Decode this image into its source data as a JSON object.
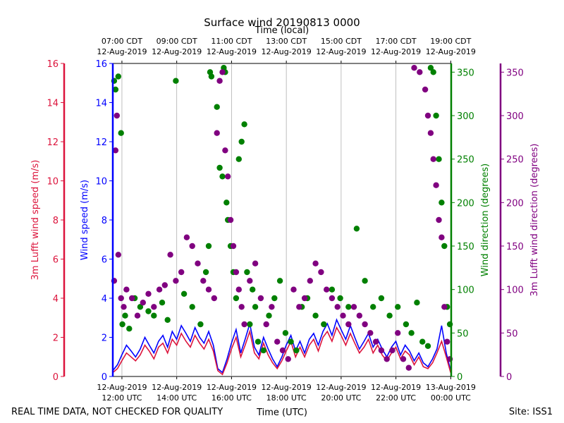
{
  "chart_data": {
    "type": "scatter",
    "title": "Surface wind 20190813 0000",
    "top_axis_label": "Time (local)",
    "xlabel": "Time (UTC)",
    "x_units": "hours UTC since 12-Aug-2019 11:40",
    "xlim": [
      0,
      12.35
    ],
    "footer_left": "REAL TIME DATA, NOT CHECKED FOR QUALITY",
    "footer_right": "Site: ISS1",
    "bottom_ticks": [
      {
        "x": 0.333,
        "line1": "12-Aug-2019",
        "line2": "12:00 UTC"
      },
      {
        "x": 2.333,
        "line1": "12-Aug-2019",
        "line2": "14:00 UTC"
      },
      {
        "x": 4.333,
        "line1": "12-Aug-2019",
        "line2": "16:00 UTC"
      },
      {
        "x": 6.333,
        "line1": "12-Aug-2019",
        "line2": "18:00 UTC"
      },
      {
        "x": 8.333,
        "line1": "12-Aug-2019",
        "line2": "20:00 UTC"
      },
      {
        "x": 10.333,
        "line1": "12-Aug-2019",
        "line2": "22:00 UTC"
      },
      {
        "x": 12.333,
        "line1": "13-Aug-2019",
        "line2": "00:00 UTC"
      }
    ],
    "top_ticks": [
      {
        "x": 0.333,
        "line1": "07:00 CDT",
        "line2": "12-Aug-2019"
      },
      {
        "x": 2.333,
        "line1": "09:00 CDT",
        "line2": "12-Aug-2019"
      },
      {
        "x": 4.333,
        "line1": "11:00 CDT",
        "line2": "12-Aug-2019"
      },
      {
        "x": 6.333,
        "line1": "13:00 CDT",
        "line2": "12-Aug-2019"
      },
      {
        "x": 8.333,
        "line1": "15:00 CDT",
        "line2": "12-Aug-2019"
      },
      {
        "x": 10.333,
        "line1": "17:00 CDT",
        "line2": "12-Aug-2019"
      },
      {
        "x": 12.333,
        "line1": "19:00 CDT",
        "line2": "12-Aug-2019"
      }
    ],
    "axes": {
      "lufft_speed": {
        "label": "3m Lufft wind speed (m/s)",
        "ylim": [
          0,
          16
        ],
        "ticks": [
          0,
          2,
          4,
          6,
          8,
          10,
          12,
          14,
          16
        ],
        "color": "#dc143c"
      },
      "speed": {
        "label": "Wind speed (m/s)",
        "ylim": [
          0,
          16
        ],
        "ticks": [
          0,
          2,
          4,
          6,
          8,
          10,
          12,
          14,
          16
        ],
        "color": "#0000ff"
      },
      "direction": {
        "label": "Wind direction (degrees)",
        "ylim": [
          0,
          360
        ],
        "ticks": [
          0,
          50,
          100,
          150,
          200,
          250,
          300,
          350
        ],
        "color": "#008000"
      },
      "lufft_direction": {
        "label": "3m Lufft wind direction (degrees)",
        "ylim": [
          0,
          360
        ],
        "ticks": [
          0,
          50,
          100,
          150,
          200,
          250,
          300,
          350
        ],
        "color": "#800080"
      }
    },
    "series": [
      {
        "name": "Wind speed",
        "axis": "speed",
        "kind": "line",
        "color": "#0000ff",
        "x": [
          0.0,
          0.17,
          0.33,
          0.5,
          0.67,
          0.83,
          1.0,
          1.17,
          1.33,
          1.5,
          1.67,
          1.83,
          2.0,
          2.17,
          2.33,
          2.5,
          2.67,
          2.83,
          3.0,
          3.17,
          3.33,
          3.5,
          3.67,
          3.83,
          4.0,
          4.17,
          4.33,
          4.5,
          4.67,
          4.83,
          5.0,
          5.17,
          5.33,
          5.5,
          5.67,
          5.83,
          6.0,
          6.17,
          6.33,
          6.5,
          6.67,
          6.83,
          7.0,
          7.17,
          7.33,
          7.5,
          7.67,
          7.83,
          8.0,
          8.17,
          8.33,
          8.5,
          8.67,
          8.83,
          9.0,
          9.17,
          9.33,
          9.5,
          9.67,
          9.83,
          10.0,
          10.17,
          10.33,
          10.5,
          10.67,
          10.83,
          11.0,
          11.17,
          11.33,
          11.5,
          11.67,
          11.83,
          12.0,
          12.17,
          12.33
        ],
        "values": [
          0.3,
          0.6,
          1.1,
          1.6,
          1.3,
          1.0,
          1.4,
          2.0,
          1.6,
          1.2,
          1.8,
          2.1,
          1.5,
          2.3,
          1.9,
          2.6,
          2.2,
          1.8,
          2.5,
          2.0,
          1.7,
          2.3,
          1.6,
          0.4,
          0.2,
          0.9,
          1.7,
          2.4,
          1.2,
          1.9,
          2.7,
          1.5,
          1.1,
          2.0,
          1.4,
          0.9,
          0.5,
          1.0,
          1.6,
          2.1,
          1.3,
          1.8,
          1.2,
          1.9,
          2.2,
          1.6,
          2.3,
          2.7,
          2.1,
          2.9,
          2.4,
          1.9,
          2.6,
          2.0,
          1.4,
          1.8,
          2.2,
          1.5,
          1.9,
          1.4,
          1.0,
          1.5,
          1.8,
          1.1,
          1.6,
          1.3,
          0.8,
          1.2,
          0.7,
          0.5,
          0.9,
          1.4,
          2.6,
          1.2,
          0.3
        ]
      },
      {
        "name": "3m Lufft wind speed",
        "axis": "lufft_speed",
        "kind": "line",
        "color": "#dc143c",
        "x": [
          0.0,
          0.17,
          0.33,
          0.5,
          0.67,
          0.83,
          1.0,
          1.17,
          1.33,
          1.5,
          1.67,
          1.83,
          2.0,
          2.17,
          2.33,
          2.5,
          2.67,
          2.83,
          3.0,
          3.17,
          3.33,
          3.5,
          3.67,
          3.83,
          4.0,
          4.17,
          4.33,
          4.5,
          4.67,
          4.83,
          5.0,
          5.17,
          5.33,
          5.5,
          5.67,
          5.83,
          6.0,
          6.17,
          6.33,
          6.5,
          6.67,
          6.83,
          7.0,
          7.17,
          7.33,
          7.5,
          7.67,
          7.83,
          8.0,
          8.17,
          8.33,
          8.5,
          8.67,
          8.83,
          9.0,
          9.17,
          9.33,
          9.5,
          9.67,
          9.83,
          10.0,
          10.17,
          10.33,
          10.5,
          10.67,
          10.83,
          11.0,
          11.17,
          11.33,
          11.5,
          11.67,
          11.83,
          12.0,
          12.17,
          12.33
        ],
        "values": [
          0.2,
          0.4,
          0.8,
          1.2,
          1.0,
          0.8,
          1.1,
          1.6,
          1.3,
          0.9,
          1.5,
          1.7,
          1.2,
          1.9,
          1.6,
          2.2,
          1.8,
          1.5,
          2.1,
          1.7,
          1.4,
          1.9,
          1.3,
          0.3,
          0.1,
          0.7,
          1.4,
          2.0,
          1.0,
          1.6,
          2.3,
          1.2,
          0.9,
          1.7,
          1.1,
          0.7,
          0.4,
          0.8,
          1.3,
          1.8,
          1.0,
          1.5,
          1.0,
          1.6,
          1.9,
          1.3,
          2.0,
          2.3,
          1.8,
          2.5,
          2.1,
          1.6,
          2.2,
          1.7,
          1.2,
          1.5,
          1.9,
          1.2,
          1.6,
          1.1,
          0.8,
          1.2,
          1.5,
          0.9,
          1.3,
          1.1,
          0.6,
          1.0,
          0.5,
          0.4,
          0.7,
          1.2,
          1.8,
          1.0,
          0.2
        ]
      },
      {
        "name": "Wind direction",
        "axis": "direction",
        "kind": "scatter",
        "color": "#008000",
        "x": [
          0.05,
          0.1,
          0.2,
          0.3,
          0.35,
          0.45,
          0.6,
          0.8,
          1.0,
          1.3,
          1.5,
          1.8,
          2.0,
          2.3,
          2.6,
          2.9,
          3.2,
          3.4,
          3.5,
          3.55,
          3.6,
          3.8,
          3.9,
          4.0,
          4.05,
          4.1,
          4.15,
          4.2,
          4.3,
          4.4,
          4.5,
          4.6,
          4.7,
          4.8,
          4.9,
          5.0,
          5.1,
          5.2,
          5.3,
          5.5,
          5.7,
          5.9,
          6.1,
          6.3,
          6.5,
          6.7,
          6.9,
          7.1,
          7.4,
          7.7,
          8.0,
          8.3,
          8.6,
          8.9,
          9.2,
          9.5,
          9.8,
          10.1,
          10.4,
          10.7,
          10.9,
          11.1,
          11.3,
          11.5,
          11.6,
          11.7,
          11.8,
          11.9,
          12.0,
          12.1,
          12.2,
          12.3
        ],
        "values": [
          340,
          330,
          345,
          280,
          60,
          70,
          55,
          90,
          80,
          75,
          70,
          85,
          65,
          340,
          95,
          80,
          60,
          120,
          150,
          350,
          345,
          310,
          240,
          230,
          355,
          350,
          200,
          180,
          150,
          120,
          90,
          250,
          270,
          290,
          120,
          60,
          100,
          80,
          40,
          30,
          70,
          90,
          110,
          50,
          40,
          30,
          80,
          90,
          70,
          60,
          100,
          90,
          80,
          170,
          110,
          80,
          90,
          70,
          80,
          60,
          50,
          85,
          40,
          35,
          355,
          350,
          300,
          250,
          200,
          150,
          80,
          60
        ]
      },
      {
        "name": "3m Lufft wind direction",
        "axis": "lufft_direction",
        "kind": "scatter",
        "color": "#800080",
        "x": [
          0.05,
          0.1,
          0.15,
          0.2,
          0.3,
          0.4,
          0.5,
          0.7,
          0.9,
          1.1,
          1.3,
          1.5,
          1.7,
          1.9,
          2.1,
          2.3,
          2.5,
          2.7,
          2.9,
          3.1,
          3.3,
          3.5,
          3.7,
          3.8,
          3.9,
          4.0,
          4.1,
          4.2,
          4.3,
          4.4,
          4.5,
          4.6,
          4.7,
          4.8,
          5.0,
          5.2,
          5.4,
          5.6,
          5.8,
          6.0,
          6.2,
          6.4,
          6.6,
          6.8,
          7.0,
          7.2,
          7.4,
          7.6,
          7.8,
          8.0,
          8.2,
          8.4,
          8.6,
          8.8,
          9.0,
          9.2,
          9.4,
          9.6,
          9.8,
          10.0,
          10.2,
          10.4,
          10.6,
          10.8,
          11.0,
          11.2,
          11.4,
          11.5,
          11.6,
          11.7,
          11.8,
          11.9,
          12.0,
          12.1,
          12.2,
          12.3
        ],
        "values": [
          110,
          260,
          300,
          140,
          90,
          80,
          100,
          90,
          70,
          85,
          95,
          80,
          100,
          105,
          140,
          110,
          120,
          160,
          150,
          130,
          110,
          100,
          90,
          280,
          340,
          350,
          260,
          230,
          180,
          150,
          120,
          100,
          80,
          60,
          110,
          130,
          90,
          60,
          80,
          40,
          30,
          20,
          100,
          80,
          90,
          110,
          130,
          120,
          100,
          90,
          80,
          70,
          60,
          80,
          70,
          60,
          50,
          40,
          30,
          20,
          30,
          50,
          20,
          10,
          355,
          350,
          330,
          300,
          280,
          250,
          220,
          180,
          160,
          80,
          40,
          20
        ]
      }
    ]
  }
}
